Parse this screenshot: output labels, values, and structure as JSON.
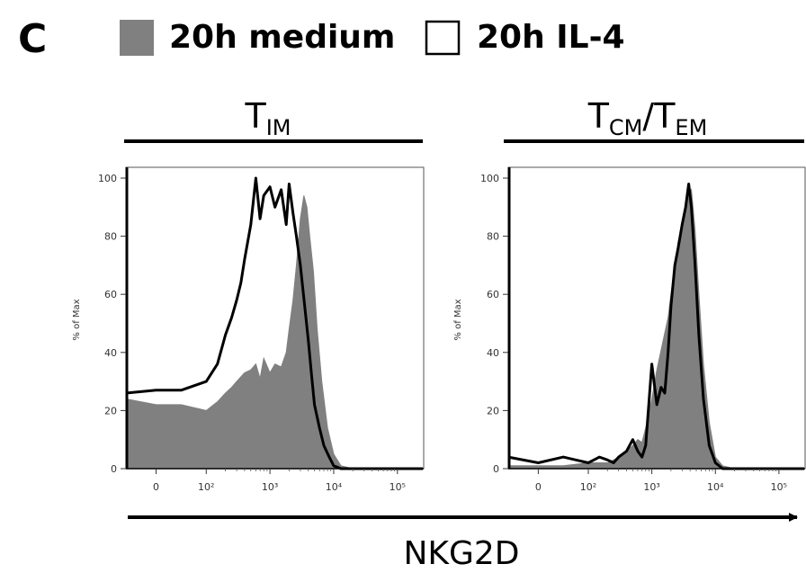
{
  "panel_letter": "C",
  "legend": [
    {
      "label": "20h medium",
      "fill": "#808080",
      "stroke": "#808080"
    },
    {
      "label": "20h IL-4",
      "fill": "#ffffff",
      "stroke": "#000000"
    }
  ],
  "xaxis_label": "NKG2D",
  "colors": {
    "medium_fill": "#808080",
    "il4_line": "#000000"
  },
  "chart_data": [
    {
      "type": "area",
      "group_title": {
        "main": "T",
        "sub": "IM"
      },
      "ylabel": "% of Max",
      "ylim": [
        0,
        100
      ],
      "yticks": [
        0,
        20,
        40,
        60,
        80,
        100
      ],
      "xscale": "biexponential",
      "xticks": [
        "0",
        "10²",
        "10³",
        "10⁴",
        "10⁵"
      ],
      "series": [
        {
          "name": "20h medium",
          "style": "filled",
          "x": [
            -60,
            0,
            50,
            100,
            150,
            200,
            250,
            300,
            400,
            500,
            600,
            700,
            800,
            1000,
            1200,
            1500,
            1800,
            2000,
            2300,
            2600,
            3000,
            3400,
            3800,
            4200,
            4800,
            5500,
            6500,
            8000,
            10000,
            13000,
            20000,
            50000,
            250000
          ],
          "y": [
            24,
            22,
            22,
            20,
            23,
            26,
            28,
            30,
            33,
            34,
            36,
            31,
            38,
            33,
            36,
            35,
            40,
            48,
            58,
            70,
            86,
            94,
            90,
            80,
            68,
            48,
            30,
            14,
            5,
            1,
            0,
            0,
            0
          ]
        },
        {
          "name": "20h IL-4",
          "style": "line",
          "x": [
            -60,
            0,
            50,
            100,
            150,
            200,
            250,
            300,
            350,
            400,
            500,
            600,
            700,
            800,
            1000,
            1200,
            1500,
            1800,
            2000,
            2300,
            2600,
            3000,
            3500,
            4000,
            4500,
            5000,
            6000,
            7000,
            8500,
            10000,
            13000,
            20000,
            50000,
            250000
          ],
          "y": [
            26,
            27,
            27,
            30,
            36,
            46,
            52,
            58,
            64,
            72,
            84,
            100,
            86,
            94,
            97,
            90,
            96,
            84,
            98,
            88,
            80,
            70,
            56,
            44,
            32,
            22,
            14,
            8,
            4,
            1,
            0,
            0,
            0,
            0
          ]
        }
      ]
    },
    {
      "type": "area",
      "group_title": {
        "main": "T",
        "sub": "CM",
        "main2": "T",
        "sub2": "EM"
      },
      "ylabel": "% of Max",
      "ylim": [
        0,
        100
      ],
      "yticks": [
        0,
        20,
        40,
        60,
        80,
        100
      ],
      "xscale": "biexponential",
      "xticks": [
        "0",
        "10²",
        "10³",
        "10⁴",
        "10⁵"
      ],
      "series": [
        {
          "name": "20h medium",
          "style": "filled",
          "x": [
            -60,
            0,
            50,
            100,
            150,
            200,
            250,
            300,
            400,
            500,
            600,
            700,
            800,
            1000,
            1200,
            1500,
            1800,
            2000,
            2300,
            2600,
            3000,
            3400,
            3800,
            4200,
            4800,
            5500,
            6500,
            8000,
            10000,
            13000,
            20000,
            250000
          ],
          "y": [
            1,
            1,
            1,
            2,
            2,
            2,
            3,
            4,
            6,
            8,
            10,
            9,
            14,
            24,
            34,
            44,
            52,
            60,
            70,
            78,
            84,
            88,
            94,
            96,
            82,
            60,
            36,
            16,
            4,
            1,
            0,
            0
          ]
        },
        {
          "name": "20h IL-4",
          "style": "line",
          "x": [
            -60,
            0,
            50,
            100,
            150,
            200,
            250,
            300,
            400,
            500,
            600,
            700,
            800,
            1000,
            1200,
            1400,
            1600,
            1800,
            2000,
            2300,
            2600,
            3000,
            3400,
            3800,
            4200,
            4800,
            5500,
            6500,
            8000,
            10000,
            13000,
            20000,
            250000
          ],
          "y": [
            4,
            2,
            4,
            2,
            4,
            3,
            2,
            4,
            6,
            10,
            6,
            4,
            8,
            36,
            22,
            28,
            26,
            40,
            56,
            70,
            76,
            84,
            90,
            98,
            90,
            70,
            46,
            24,
            8,
            2,
            0,
            0,
            0
          ]
        }
      ]
    }
  ]
}
